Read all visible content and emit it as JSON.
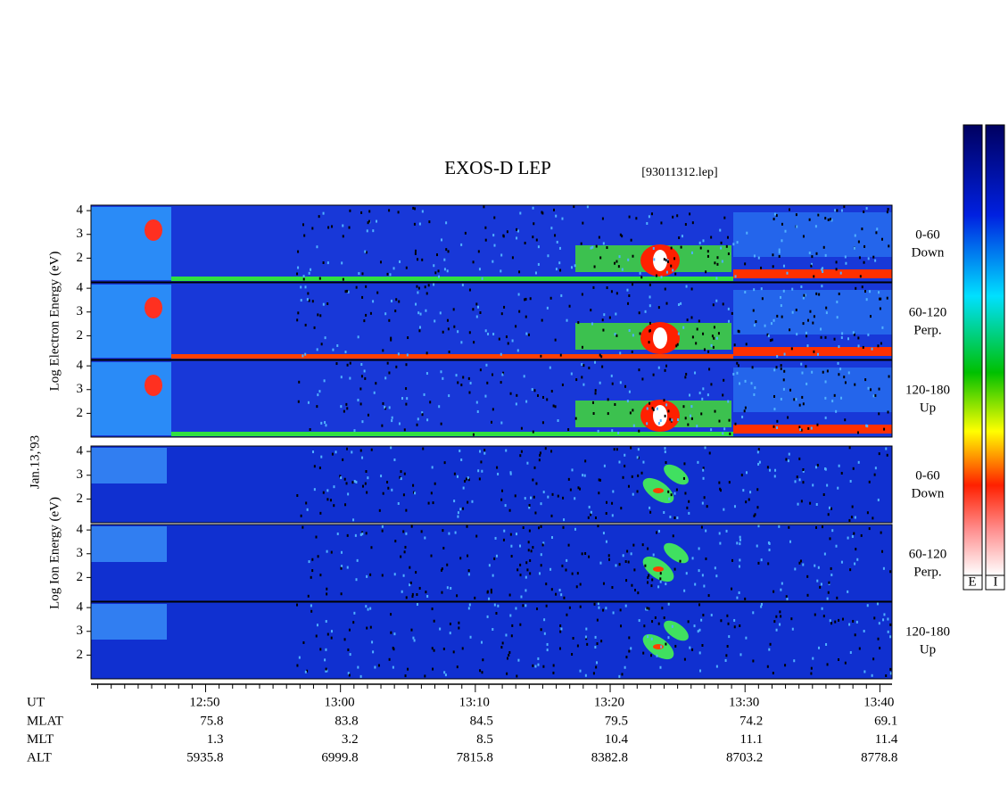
{
  "chart_data": {
    "type": "spectrogram",
    "title": "EXOS-D LEP",
    "subtitle": "[93011312.lep]",
    "date_label": "Jan.13,'93",
    "groups": [
      {
        "label": "Log Electron Energy (eV)"
      },
      {
        "label": "Log Ion Energy (eV)"
      }
    ],
    "panels": [
      {
        "group": 0,
        "angle": "0-60",
        "direction": "Down"
      },
      {
        "group": 0,
        "angle": "60-120",
        "direction": "Perp."
      },
      {
        "group": 0,
        "angle": "120-180",
        "direction": "Up"
      },
      {
        "group": 1,
        "angle": "0-60",
        "direction": "Down"
      },
      {
        "group": 1,
        "angle": "60-120",
        "direction": "Perp."
      },
      {
        "group": 1,
        "angle": "120-180",
        "direction": "Up"
      }
    ],
    "ylim": [
      1,
      4.23
    ],
    "yticks": [
      2,
      3,
      4
    ],
    "xlim": [
      761.5,
      820.9
    ],
    "xticks": [
      {
        "value": 770,
        "label": "12:50"
      },
      {
        "value": 780,
        "label": "13:00"
      },
      {
        "value": 790,
        "label": "13:10"
      },
      {
        "value": 800,
        "label": "13:20"
      },
      {
        "value": 810,
        "label": "13:30"
      },
      {
        "value": 820,
        "label": "13:40"
      }
    ],
    "xminorticks": [
      762,
      763,
      764,
      765,
      766,
      767,
      768,
      769,
      771,
      772,
      773,
      774,
      775,
      776,
      777,
      778,
      779,
      781,
      782,
      783,
      784,
      785,
      786,
      787,
      788,
      789,
      791,
      792,
      793,
      794,
      795,
      796,
      797,
      798,
      799,
      801,
      802,
      803,
      804,
      805,
      806,
      807,
      808,
      809,
      811,
      812,
      813,
      814,
      815,
      816,
      817,
      818,
      819
    ],
    "x_label": "UT",
    "ephemeris": [
      {
        "name": "MLAT",
        "values": [
          75.8,
          83.8,
          84.5,
          79.5,
          74.2,
          69.1
        ]
      },
      {
        "name": "MLT",
        "values": [
          1.3,
          3.2,
          8.5,
          10.4,
          11.1,
          11.4
        ]
      },
      {
        "name": "ALT",
        "values": [
          5935.8,
          6999.8,
          7815.8,
          8382.8,
          8703.2,
          8778.8
        ]
      }
    ],
    "colorbars": [
      "E",
      "I"
    ]
  }
}
